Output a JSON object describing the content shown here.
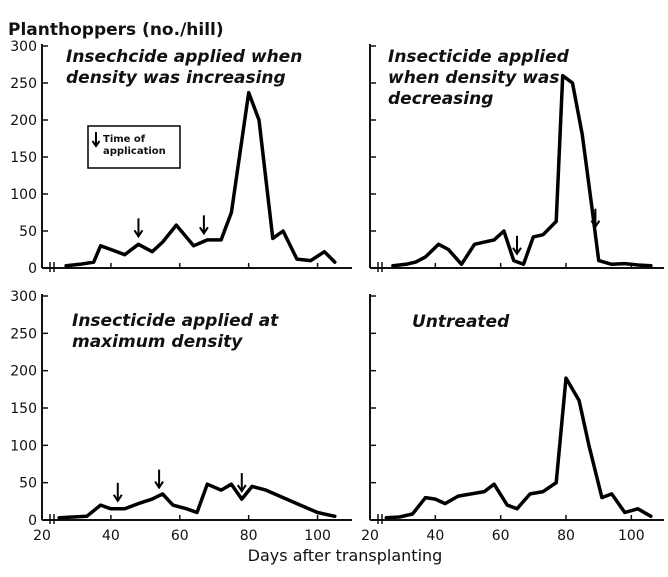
{
  "chart_data": [
    {
      "type": "line",
      "title": "Insechcide applied when density was increasing",
      "title_lines": [
        "Insechcide applied when",
        "density was increasing"
      ],
      "ylabel": "Planthoppers (no./hill)",
      "ylim": [
        0,
        300
      ],
      "xlim": [
        20,
        110
      ],
      "yticks": [
        "0",
        "50",
        "100",
        "150",
        "200",
        "250",
        "300"
      ],
      "legend": {
        "text": "Time of application",
        "lines": [
          "Time of",
          "application"
        ]
      },
      "series": [
        {
          "x": [
            27,
            31,
            35,
            37,
            40,
            44,
            48,
            52,
            55,
            59,
            64,
            68,
            72,
            75,
            80,
            83,
            87,
            90,
            94,
            98,
            102,
            105
          ],
          "y": [
            3,
            5,
            8,
            30,
            25,
            18,
            32,
            22,
            35,
            58,
            30,
            38,
            38,
            75,
            237,
            200,
            40,
            50,
            12,
            10,
            22,
            8
          ]
        }
      ],
      "arrows_x": [
        48,
        67
      ]
    },
    {
      "type": "line",
      "title": "Insecticide applied when density was decreasing",
      "title_lines": [
        "Insecticide applied",
        "when density was",
        "decreasing"
      ],
      "ylim": [
        0,
        300
      ],
      "xlim": [
        20,
        110
      ],
      "series": [
        {
          "x": [
            27,
            31,
            34,
            37,
            41,
            44,
            48,
            52,
            55,
            58,
            61,
            64,
            67,
            70,
            73,
            77,
            79,
            82,
            85,
            88,
            90,
            94,
            98,
            102,
            106
          ],
          "y": [
            3,
            5,
            8,
            15,
            32,
            25,
            5,
            32,
            35,
            38,
            50,
            10,
            5,
            42,
            45,
            63,
            260,
            250,
            180,
            80,
            10,
            5,
            6,
            4,
            3
          ]
        }
      ],
      "arrows_x": [
        65,
        89
      ]
    },
    {
      "type": "line",
      "title": "Insecticide applied at maximum density",
      "title_lines": [
        "Insecticide applied at",
        "maximum density"
      ],
      "ylim": [
        0,
        300
      ],
      "xlim": [
        20,
        110
      ],
      "xticks": [
        "20",
        "40",
        "60",
        "80",
        "100"
      ],
      "series": [
        {
          "x": [
            25,
            29,
            33,
            37,
            40,
            44,
            48,
            52,
            55,
            58,
            62,
            65,
            68,
            72,
            75,
            78,
            81,
            85,
            90,
            95,
            100,
            105
          ],
          "y": [
            3,
            4,
            5,
            20,
            15,
            15,
            22,
            28,
            35,
            20,
            15,
            10,
            48,
            40,
            48,
            28,
            45,
            40,
            30,
            20,
            10,
            5
          ]
        }
      ],
      "arrows_x": [
        42,
        54,
        78
      ]
    },
    {
      "type": "line",
      "title": "Untreated",
      "title_lines": [
        "Untreated"
      ],
      "ylim": [
        0,
        300
      ],
      "xlim": [
        20,
        110
      ],
      "xticks": [
        "20",
        "40",
        "60",
        "80",
        "100"
      ],
      "series": [
        {
          "x": [
            25,
            29,
            33,
            37,
            40,
            43,
            47,
            51,
            55,
            58,
            62,
            65,
            69,
            73,
            77,
            80,
            84,
            87,
            91,
            94,
            98,
            102,
            106
          ],
          "y": [
            3,
            4,
            8,
            30,
            28,
            22,
            32,
            35,
            38,
            48,
            20,
            15,
            35,
            38,
            50,
            190,
            160,
            100,
            30,
            35,
            10,
            15,
            5
          ]
        }
      ],
      "arrows_x": []
    }
  ],
  "xlabel": "Days after transplanting"
}
